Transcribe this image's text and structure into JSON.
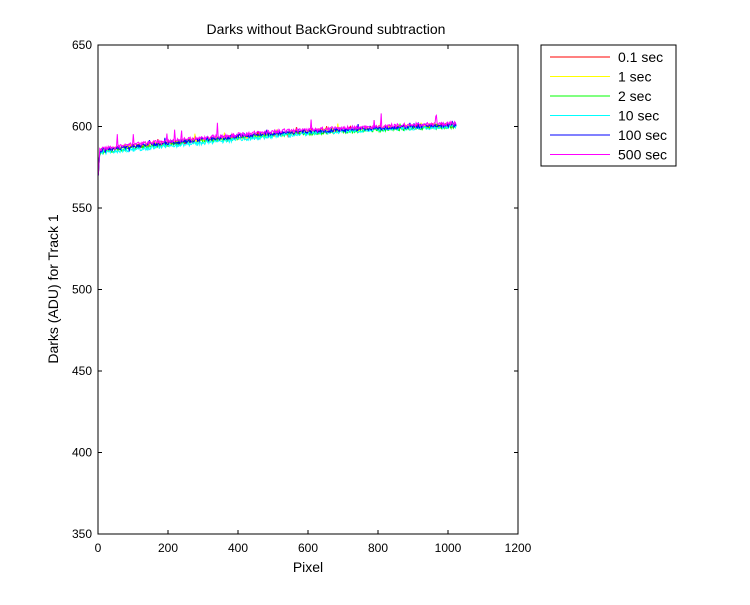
{
  "chart_data": {
    "type": "line",
    "title": "Darks without BackGround subtraction",
    "xlabel": "Pixel",
    "ylabel": "Darks (ADU) for Track 1",
    "xlim": [
      0,
      1200
    ],
    "ylim": [
      350,
      650
    ],
    "xticks": [
      0,
      200,
      400,
      600,
      800,
      1000,
      1200
    ],
    "yticks": [
      350,
      400,
      450,
      500,
      550,
      600,
      650
    ],
    "xtick_labels": [
      "0",
      "200",
      "400",
      "600",
      "800",
      "1000",
      "1200"
    ],
    "ytick_labels": [
      "350",
      "400",
      "450",
      "500",
      "550",
      "600",
      "650"
    ],
    "grid": false,
    "legend_position": "outside-top-right",
    "x_range": [
      1,
      1024
    ],
    "series": [
      {
        "name": "0.1 sec",
        "color": "#ff0000",
        "points": [
          [
            1,
            570
          ],
          [
            5,
            585
          ],
          [
            100,
            588
          ],
          [
            200,
            590
          ],
          [
            300,
            592
          ],
          [
            400,
            594
          ],
          [
            500,
            595
          ],
          [
            600,
            597
          ],
          [
            700,
            598
          ],
          [
            800,
            599
          ],
          [
            900,
            600
          ],
          [
            1024,
            601
          ]
        ]
      },
      {
        "name": "1 sec",
        "color": "#ffff00",
        "points": [
          [
            1,
            570
          ],
          [
            5,
            585
          ],
          [
            100,
            588
          ],
          [
            200,
            590
          ],
          [
            300,
            592
          ],
          [
            400,
            593
          ],
          [
            500,
            595
          ],
          [
            600,
            597
          ],
          [
            700,
            598
          ],
          [
            800,
            599
          ],
          [
            900,
            600
          ],
          [
            1024,
            601
          ]
        ]
      },
      {
        "name": "2 sec",
        "color": "#00ff00",
        "points": [
          [
            1,
            570
          ],
          [
            5,
            584
          ],
          [
            100,
            587
          ],
          [
            200,
            589
          ],
          [
            300,
            591
          ],
          [
            400,
            593
          ],
          [
            500,
            595
          ],
          [
            600,
            596
          ],
          [
            700,
            597
          ],
          [
            800,
            598
          ],
          [
            900,
            599
          ],
          [
            1024,
            600
          ]
        ]
      },
      {
        "name": "10 sec",
        "color": "#00ffff",
        "points": [
          [
            1,
            570
          ],
          [
            5,
            584
          ],
          [
            100,
            586
          ],
          [
            200,
            588
          ],
          [
            300,
            590
          ],
          [
            400,
            592
          ],
          [
            500,
            594
          ],
          [
            600,
            596
          ],
          [
            700,
            597
          ],
          [
            800,
            598
          ],
          [
            900,
            599
          ],
          [
            1024,
            600
          ]
        ]
      },
      {
        "name": "100 sec",
        "color": "#0000ff",
        "points": [
          [
            1,
            570
          ],
          [
            5,
            585
          ],
          [
            100,
            588
          ],
          [
            200,
            590
          ],
          [
            300,
            592
          ],
          [
            400,
            594
          ],
          [
            500,
            596
          ],
          [
            600,
            597
          ],
          [
            700,
            598
          ],
          [
            800,
            599
          ],
          [
            900,
            600
          ],
          [
            1024,
            601
          ]
        ]
      },
      {
        "name": "500 sec",
        "color": "#ff00ff",
        "points": [
          [
            1,
            570
          ],
          [
            5,
            586
          ],
          [
            100,
            589
          ],
          [
            200,
            591
          ],
          [
            300,
            593
          ],
          [
            400,
            595
          ],
          [
            500,
            597
          ],
          [
            600,
            598
          ],
          [
            700,
            599
          ],
          [
            800,
            600
          ],
          [
            900,
            601
          ],
          [
            1024,
            602
          ]
        ]
      }
    ]
  }
}
